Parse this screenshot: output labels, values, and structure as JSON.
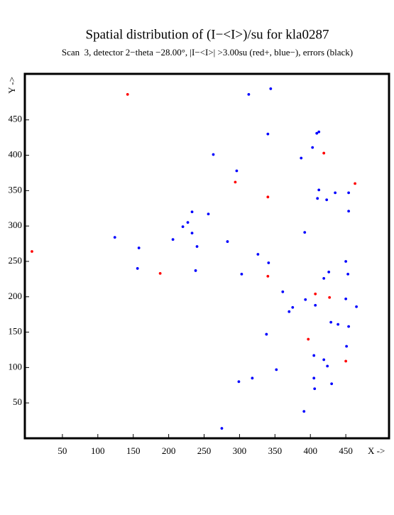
{
  "chart_data": {
    "type": "scatter",
    "title": "Spatial distribution of (I−<I>)/su for kla0287",
    "subtitle": "Scan  3, detector 2−theta −28.00°, |I−<I>| >3.00su (red+, blue−), errors (black)",
    "x_label": "X ->",
    "y_label": "Y ->",
    "xlim": [
      -3,
      511
    ],
    "ylim": [
      0,
      515
    ],
    "xticks": [
      50,
      100,
      150,
      200,
      250,
      300,
      350,
      400,
      450
    ],
    "yticks": [
      50,
      100,
      150,
      200,
      250,
      300,
      350,
      400,
      450
    ],
    "series": [
      {
        "color": "#ff0000",
        "x": [
          142,
          7,
          188,
          294,
          340,
          340,
          419,
          463,
          407,
          427,
          397,
          450
        ],
        "y": [
          486,
          264,
          233,
          362,
          341,
          229,
          403,
          360,
          204,
          199,
          140,
          109
        ]
      },
      {
        "color": "#0000ff",
        "x": [
          344,
          313,
          340,
          263,
          296,
          387,
          403,
          409,
          412,
          435,
          412,
          410,
          423,
          454,
          454,
          233,
          256,
          227,
          220,
          233,
          206,
          124,
          158,
          240,
          283,
          392,
          326,
          341,
          156,
          238,
          303,
          450,
          426,
          419,
          453,
          361,
          375,
          370,
          393,
          407,
          450,
          465,
          429,
          439,
          454,
          338,
          405,
          419,
          424,
          451,
          352,
          318,
          299,
          405,
          430,
          406,
          391,
          275
        ],
        "y": [
          494,
          486,
          430,
          401,
          378,
          396,
          411,
          431,
          433,
          347,
          351,
          339,
          337,
          347,
          321,
          320,
          317,
          305,
          299,
          290,
          281,
          284,
          269,
          271,
          278,
          291,
          260,
          248,
          240,
          237,
          232,
          250,
          235,
          226,
          232,
          207,
          185,
          179,
          196,
          188,
          197,
          186,
          164,
          161,
          158,
          147,
          117,
          111,
          102,
          130,
          97,
          85,
          80,
          85,
          77,
          70,
          38,
          14
        ]
      }
    ]
  }
}
